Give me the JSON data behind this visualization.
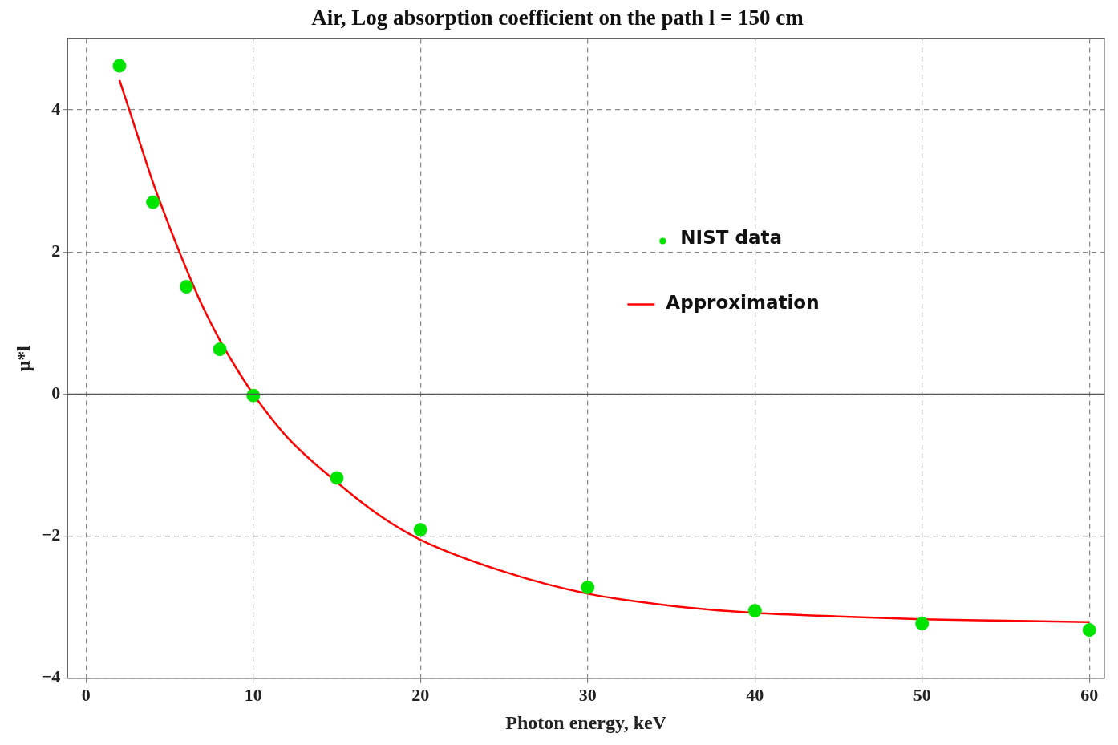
{
  "chart_data": {
    "type": "scatter",
    "title": "Air, Log absorption coefficient on the path l = 150 cm",
    "xlabel": "Photon energy, keV",
    "ylabel": "μ*l",
    "xlim": [
      -1.1,
      60.9
    ],
    "xticks": [
      0,
      10,
      20,
      30,
      40,
      50,
      60
    ],
    "ylim": [
      -4,
      5
    ],
    "yticks": [
      -4,
      -2,
      0,
      2,
      4
    ],
    "grid": true,
    "legend": "right",
    "marker": "circle",
    "ref_lines": [
      {
        "axis": "y",
        "value": 0,
        "color": "#555555",
        "line_style": "solid"
      }
    ],
    "series": [
      {
        "name": "NIST data",
        "type": "scatter",
        "color": "#00e400",
        "x": [
          2,
          4,
          6,
          8,
          10,
          15,
          20,
          30,
          40,
          50,
          60
        ],
        "values": [
          4.62,
          2.7,
          1.51,
          0.63,
          -0.02,
          -1.18,
          -1.91,
          -2.72,
          -3.05,
          -3.23,
          -3.32
        ]
      },
      {
        "name": "Approximation",
        "type": "line",
        "marker": "none",
        "color": "#ff0000",
        "x": [
          2,
          3,
          4,
          5,
          6,
          7,
          8,
          9,
          10,
          12,
          15,
          17.5,
          20,
          25,
          30,
          35,
          40,
          45,
          50,
          55,
          60
        ],
        "values": [
          4.42,
          3.7,
          2.98,
          2.35,
          1.76,
          1.22,
          0.76,
          0.36,
          0,
          -0.6,
          -1.24,
          -1.7,
          -2.05,
          -2.5,
          -2.81,
          -2.98,
          -3.08,
          -3.13,
          -3.17,
          -3.19,
          -3.21
        ]
      }
    ]
  }
}
